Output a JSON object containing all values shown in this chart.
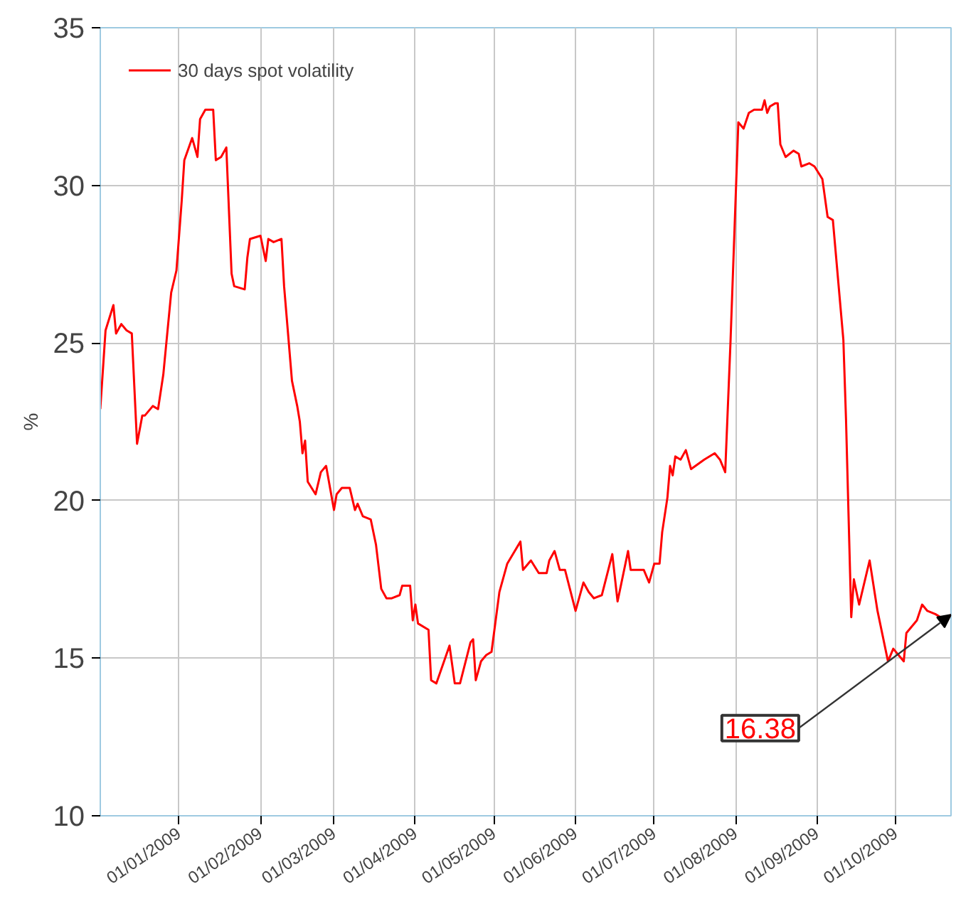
{
  "chart_data": {
    "type": "line",
    "ylabel": "%",
    "legend": "top left",
    "grid": true,
    "line_style": "solid",
    "marker": "none",
    "xlim": [
      "2008-12-02",
      "2009-10-22"
    ],
    "ylim": [
      10,
      35
    ],
    "yticks": [
      10,
      15,
      20,
      25,
      30,
      35
    ],
    "xticks": [
      {
        "value": "2009-01-01",
        "label": "01/01/2009"
      },
      {
        "value": "2009-02-01",
        "label": "01/02/2009"
      },
      {
        "value": "2009-03-01",
        "label": "01/03/2009"
      },
      {
        "value": "2009-04-01",
        "label": "01/04/2009"
      },
      {
        "value": "2009-05-01",
        "label": "01/05/2009"
      },
      {
        "value": "2009-06-01",
        "label": "01/06/2009"
      },
      {
        "value": "2009-07-01",
        "label": "01/07/2009"
      },
      {
        "value": "2009-08-01",
        "label": "01/08/2009"
      },
      {
        "value": "2009-09-01",
        "label": "01/09/2009"
      },
      {
        "value": "2009-10-01",
        "label": "01/10/2009"
      }
    ],
    "annotations": [
      {
        "text": "16.38",
        "x": "2009-10-22",
        "y": 16.38
      }
    ],
    "x": [
      "2008-12-02",
      "2008-12-04",
      "2008-12-07",
      "2008-12-08",
      "2008-12-10",
      "2008-12-12",
      "2008-12-14",
      "2008-12-16",
      "2008-12-18",
      "2008-12-19",
      "2008-12-22",
      "2008-12-24",
      "2008-12-26",
      "2008-12-29",
      "2008-12-31",
      "2009-01-02",
      "2009-01-03",
      "2009-01-06",
      "2009-01-08",
      "2009-01-09",
      "2009-01-11",
      "2009-01-14",
      "2009-01-15",
      "2009-01-17",
      "2009-01-19",
      "2009-01-21",
      "2009-01-22",
      "2009-01-26",
      "2009-01-27",
      "2009-01-28",
      "2009-02-01",
      "2009-02-03",
      "2009-02-04",
      "2009-02-06",
      "2009-02-09",
      "2009-02-10",
      "2009-02-11",
      "2009-02-13",
      "2009-02-15",
      "2009-02-16",
      "2009-02-17",
      "2009-02-18",
      "2009-02-19",
      "2009-02-22",
      "2009-02-24",
      "2009-02-26",
      "2009-03-01",
      "2009-03-02",
      "2009-03-04",
      "2009-03-07",
      "2009-03-09",
      "2009-03-10",
      "2009-03-12",
      "2009-03-15",
      "2009-03-17",
      "2009-03-19",
      "2009-03-21",
      "2009-03-23",
      "2009-03-26",
      "2009-03-27",
      "2009-03-30",
      "2009-03-31",
      "2009-04-01",
      "2009-04-02",
      "2009-04-06",
      "2009-04-07",
      "2009-04-09",
      "2009-04-14",
      "2009-04-16",
      "2009-04-18",
      "2009-04-22",
      "2009-04-23",
      "2009-04-24",
      "2009-04-26",
      "2009-04-28",
      "2009-04-30",
      "2009-05-03",
      "2009-05-06",
      "2009-05-11",
      "2009-05-12",
      "2009-05-15",
      "2009-05-18",
      "2009-05-21",
      "2009-05-22",
      "2009-05-24",
      "2009-05-26",
      "2009-05-28",
      "2009-06-01",
      "2009-06-04",
      "2009-06-06",
      "2009-06-08",
      "2009-06-11",
      "2009-06-15",
      "2009-06-17",
      "2009-06-21",
      "2009-06-22",
      "2009-06-27",
      "2009-06-29",
      "2009-07-01",
      "2009-07-03",
      "2009-07-04",
      "2009-07-06",
      "2009-07-07",
      "2009-07-08",
      "2009-07-09",
      "2009-07-11",
      "2009-07-13",
      "2009-07-15",
      "2009-07-20",
      "2009-07-24",
      "2009-07-26",
      "2009-07-28",
      "2009-07-30",
      "2009-08-02",
      "2009-08-04",
      "2009-08-06",
      "2009-08-08",
      "2009-08-11",
      "2009-08-12",
      "2009-08-13",
      "2009-08-14",
      "2009-08-16",
      "2009-08-17",
      "2009-08-18",
      "2009-08-20",
      "2009-08-23",
      "2009-08-25",
      "2009-08-26",
      "2009-08-29",
      "2009-08-31",
      "2009-09-03",
      "2009-09-05",
      "2009-09-07",
      "2009-09-11",
      "2009-09-12",
      "2009-09-14",
      "2009-09-15",
      "2009-09-17",
      "2009-09-21",
      "2009-09-24",
      "2009-09-28",
      "2009-09-30",
      "2009-10-02",
      "2009-10-04",
      "2009-10-05",
      "2009-10-09",
      "2009-10-11",
      "2009-10-13",
      "2009-10-16",
      "2009-10-20",
      "2009-10-22"
    ],
    "series": [
      {
        "name": "30 days spot volatility",
        "color": "#ff0000",
        "values": [
          22.9,
          25.4,
          26.2,
          25.3,
          25.6,
          25.4,
          25.3,
          21.8,
          22.7,
          22.7,
          23.0,
          22.9,
          24.0,
          26.6,
          27.3,
          29.5,
          30.8,
          31.5,
          30.9,
          32.1,
          32.4,
          32.4,
          30.8,
          30.9,
          31.2,
          27.2,
          26.8,
          26.7,
          27.7,
          28.3,
          28.4,
          27.6,
          28.3,
          28.2,
          28.3,
          26.8,
          25.8,
          23.8,
          23.0,
          22.5,
          21.5,
          21.9,
          20.6,
          20.2,
          20.9,
          21.1,
          19.7,
          20.2,
          20.4,
          20.4,
          19.7,
          19.9,
          19.5,
          19.4,
          18.6,
          17.2,
          16.9,
          16.9,
          17.0,
          17.3,
          17.3,
          16.2,
          16.7,
          16.1,
          15.9,
          14.3,
          14.2,
          15.4,
          14.2,
          14.2,
          15.5,
          15.6,
          14.3,
          14.9,
          15.1,
          15.2,
          17.1,
          18.0,
          18.7,
          17.8,
          18.1,
          17.7,
          17.7,
          18.1,
          18.4,
          17.8,
          17.8,
          16.5,
          17.4,
          17.1,
          16.9,
          17.0,
          18.3,
          16.8,
          18.4,
          17.8,
          17.8,
          17.4,
          18.0,
          18.0,
          19.0,
          20.1,
          21.1,
          20.8,
          21.4,
          21.3,
          21.6,
          21.0,
          21.3,
          21.5,
          21.3,
          20.9,
          25.0,
          32.0,
          31.8,
          32.3,
          32.4,
          32.4,
          32.7,
          32.3,
          32.5,
          32.6,
          32.6,
          31.3,
          30.9,
          31.1,
          31.0,
          30.6,
          30.7,
          30.6,
          30.2,
          29.0,
          28.9,
          25.1,
          22.6,
          16.3,
          17.5,
          16.7,
          18.1,
          16.5,
          14.9,
          15.3,
          15.1,
          14.9,
          15.8,
          16.2,
          16.7,
          16.5,
          16.4,
          16.2,
          16.38
        ]
      }
    ]
  }
}
